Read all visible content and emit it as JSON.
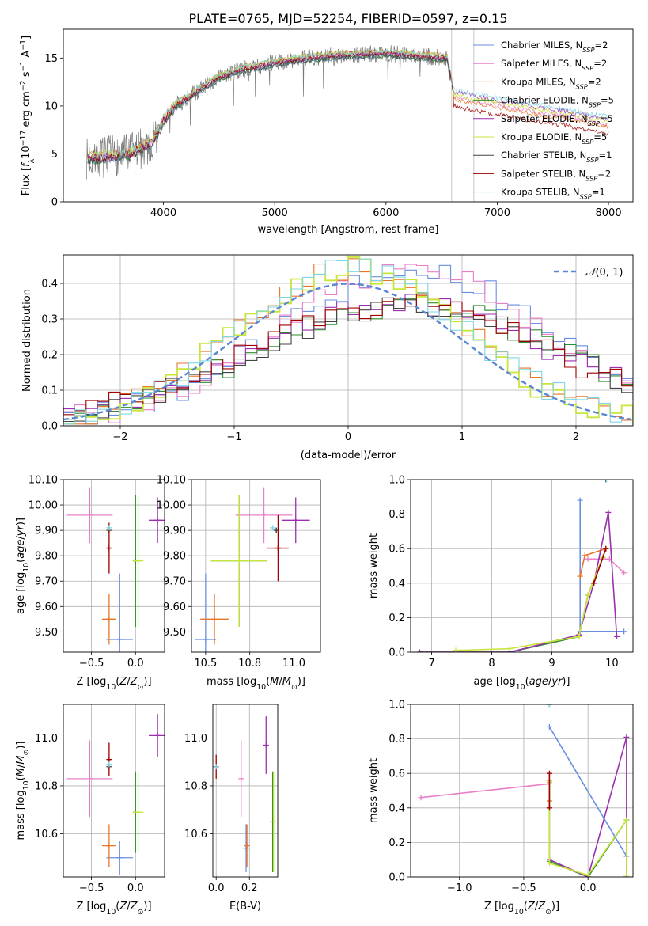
{
  "figure_title": "PLATE=0765, MJD=52254, FIBERID=0597, z=0.15",
  "colors": {
    "chabrier_miles": "#6a8fe0",
    "salpeter_miles": "#e880c8",
    "kroupa_miles": "#e8762a",
    "chabrier_elodie": "#2e8a2e",
    "salpeter_elodie": "#9b2fae",
    "kroupa_elodie": "#c8e63a",
    "chabrier_stelib": "#444444",
    "salpeter_stelib": "#a00000",
    "kroupa_stelib": "#7fd6e6",
    "normal_curve": "#5b86d6"
  },
  "chart_data": [
    {
      "id": "spectrum",
      "type": "line",
      "title": "PLATE=0765, MJD=52254, FIBERID=0597, z=0.15",
      "xlabel": "wavelength [Angstrom, rest frame]",
      "ylabel": "Flux [f_λ 10^-17 erg cm^-2 s^-1 A^-1]",
      "xlim": [
        3100,
        8220
      ],
      "ylim": [
        0,
        18
      ],
      "xticks": [
        4000,
        5000,
        6000,
        7000,
        8000
      ],
      "yticks": [
        0,
        5,
        10,
        15
      ],
      "grid": false,
      "legend_position": "top-right",
      "legend": [
        "Chabrier MILES, N_SSP=2",
        "Salpeter MILES, N_SSP=2",
        "Kroupa MILES, N_SSP=2",
        "Chabrier ELODIE, N_SSP=5",
        "Salpeter ELODIE, N_SSP=5",
        "Kroupa ELODIE, N_SSP=5",
        "Chabrier STELIB, N_SSP=1",
        "Salpeter STELIB, N_SSP=2",
        "Kroupa STELIB, N_SSP=1"
      ],
      "continuum": {
        "x": [
          3300,
          3500,
          3700,
          3900,
          4000,
          4100,
          4300,
          4500,
          4700,
          5000,
          5300,
          5600,
          6000,
          6300,
          6550,
          6600
        ],
        "y": [
          4.5,
          4.7,
          5.0,
          6.2,
          8.5,
          10.0,
          11.5,
          13.0,
          13.8,
          14.5,
          15.0,
          15.3,
          15.5,
          15.2,
          15.0,
          12.0
        ]
      },
      "red_tail": {
        "x": [
          6600,
          6800,
          7000,
          7200,
          7400,
          7600,
          7800,
          8000
        ],
        "y": [
          11.5,
          11.0,
          10.6,
          10.2,
          9.8,
          9.5,
          9.0,
          8.6
        ]
      }
    },
    {
      "id": "residuals",
      "type": "line",
      "xlabel": "(data-model)/error",
      "ylabel": "Normed distribution",
      "xlim": [
        -2.5,
        2.5
      ],
      "ylim": [
        0,
        0.48
      ],
      "xticks": [
        -2,
        -1,
        0,
        1,
        2
      ],
      "yticks": [
        0.0,
        0.1,
        0.2,
        0.3,
        0.4
      ],
      "grid": true,
      "legend_position": "top-right",
      "legend": [
        "𝒩(0,1)"
      ],
      "normal_curve": {
        "mean": 0,
        "sigma": 1
      },
      "histogram_groups": [
        {
          "mean": 0.0,
          "sigma": 1.0,
          "peak": 0.44
        },
        {
          "mean": 0.55,
          "sigma": 1.2,
          "peak": 0.44
        },
        {
          "mean": 0.5,
          "sigma": 1.35,
          "peak": 0.34
        }
      ]
    },
    {
      "id": "age-vs-z",
      "type": "scatter",
      "xlabel": "Z [log10(Z/Z⊙)]",
      "ylabel": "age [log10(age/yr)]",
      "xlim": [
        -0.82,
        0.33
      ],
      "ylim": [
        9.42,
        10.1
      ],
      "xticks": [
        -0.5,
        0.0
      ],
      "yticks": [
        9.5,
        9.6,
        9.7,
        9.8,
        9.9,
        10.0,
        10.1
      ],
      "grid": true,
      "points": [
        {
          "series": "Chabrier MILES",
          "x": -0.18,
          "y": 9.47,
          "xerr": 0.15,
          "yerr": 0.26
        },
        {
          "series": "Salpeter MILES",
          "x": -0.52,
          "y": 9.96,
          "xerr": 0.26,
          "yerr": 0.11
        },
        {
          "series": "Kroupa MILES",
          "x": -0.3,
          "y": 9.55,
          "xerr": 0.08,
          "yerr": 0.1
        },
        {
          "series": "Chabrier ELODIE",
          "x": 0.0,
          "y": 9.78,
          "xerr": 0.02,
          "yerr": 0.26
        },
        {
          "series": "Salpeter ELODIE",
          "x": 0.25,
          "y": 9.94,
          "xerr": 0.1,
          "yerr": 0.09
        },
        {
          "series": "Kroupa ELODIE",
          "x": 0.03,
          "y": 9.78,
          "xerr": 0.06,
          "yerr": 0.26
        },
        {
          "series": "Chabrier STELIB",
          "x": -0.3,
          "y": 9.9,
          "xerr": 0.01,
          "yerr": 0.01
        },
        {
          "series": "Salpeter STELIB",
          "x": -0.3,
          "y": 9.83,
          "xerr": 0.02,
          "yerr": 0.1
        },
        {
          "series": "Kroupa STELIB",
          "x": -0.3,
          "y": 9.91,
          "xerr": 0.0,
          "yerr": 0.0
        }
      ]
    },
    {
      "id": "age-vs-mass",
      "type": "scatter",
      "xlabel": "mass [log10(M/M⊙)]",
      "ylabel": "",
      "xlim": [
        10.42,
        11.15
      ],
      "ylim": [
        9.42,
        10.1
      ],
      "xticks": [
        10.5,
        10.75,
        11.0
      ],
      "yticks": [
        9.5,
        9.6,
        9.7,
        9.8,
        9.9,
        10.0,
        10.1
      ],
      "grid": true,
      "points": [
        {
          "series": "Chabrier MILES",
          "x": 10.5,
          "y": 9.47,
          "xerr": 0.06,
          "yerr": 0.26
        },
        {
          "series": "Salpeter MILES",
          "x": 10.83,
          "y": 9.96,
          "xerr": 0.16,
          "yerr": 0.11
        },
        {
          "series": "Kroupa MILES",
          "x": 10.55,
          "y": 9.55,
          "xerr": 0.08,
          "yerr": 0.1
        },
        {
          "series": "Chabrier ELODIE",
          "x": 10.69,
          "y": 9.78,
          "xerr": 0.16,
          "yerr": 0.26
        },
        {
          "series": "Salpeter ELODIE",
          "x": 11.01,
          "y": 9.94,
          "xerr": 0.08,
          "yerr": 0.09
        },
        {
          "series": "Kroupa ELODIE",
          "x": 10.69,
          "y": 9.78,
          "xerr": 0.16,
          "yerr": 0.26
        },
        {
          "series": "Chabrier STELIB",
          "x": 10.9,
          "y": 9.9,
          "xerr": 0.01,
          "yerr": 0.01
        },
        {
          "series": "Salpeter STELIB",
          "x": 10.91,
          "y": 9.83,
          "xerr": 0.06,
          "yerr": 0.13
        },
        {
          "series": "Kroupa STELIB",
          "x": 10.88,
          "y": 9.91,
          "xerr": 0.0,
          "yerr": 0.0
        }
      ]
    },
    {
      "id": "weight-vs-age",
      "type": "line",
      "xlabel": "age [log10(age/yr)]",
      "ylabel": "mass weight",
      "xlim": [
        6.65,
        10.35
      ],
      "ylim": [
        0,
        1.0
      ],
      "xticks": [
        7,
        8,
        9,
        10
      ],
      "yticks": [
        0.0,
        0.2,
        0.4,
        0.6,
        0.8,
        1.0
      ],
      "grid": true,
      "series": [
        {
          "name": "Chabrier MILES",
          "x": [
            9.47,
            9.47,
            10.2
          ],
          "y": [
            0.88,
            0.12,
            0.12
          ]
        },
        {
          "name": "Salpeter MILES",
          "x": [
            9.6,
            9.96,
            10.2
          ],
          "y": [
            0.54,
            0.54,
            0.46
          ]
        },
        {
          "name": "Kroupa MILES",
          "x": [
            9.47,
            9.55,
            9.9
          ],
          "y": [
            0.44,
            0.56,
            0.6
          ]
        },
        {
          "name": "Chabrier ELODIE",
          "x": [
            6.8,
            8.3,
            9.45,
            9.6,
            9.85
          ],
          "y": [
            0.0,
            0.0,
            0.09,
            0.33,
            0.55
          ]
        },
        {
          "name": "Salpeter ELODIE",
          "x": [
            6.8,
            8.3,
            9.45,
            9.7,
            9.94,
            10.08
          ],
          "y": [
            0.0,
            0.0,
            0.1,
            0.4,
            0.81,
            0.09
          ]
        },
        {
          "name": "Kroupa ELODIE",
          "x": [
            7.4,
            8.3,
            9.45,
            9.6,
            9.85
          ],
          "y": [
            0.01,
            0.02,
            0.09,
            0.33,
            0.55
          ]
        },
        {
          "name": "Chabrier STELIB",
          "x": [
            9.9
          ],
          "y": [
            1.0
          ]
        },
        {
          "name": "Salpeter STELIB",
          "x": [
            9.7,
            9.9
          ],
          "y": [
            0.4,
            0.6
          ]
        },
        {
          "name": "Kroupa STELIB",
          "x": [
            9.91
          ],
          "y": [
            1.0
          ]
        }
      ]
    },
    {
      "id": "mass-vs-z",
      "type": "scatter",
      "xlabel": "Z [log10(Z/Z⊙)]",
      "ylabel": "mass [log10(M/M⊙)]",
      "xlim": [
        -0.82,
        0.33
      ],
      "ylim": [
        10.42,
        11.14
      ],
      "xticks": [
        -0.5,
        0.0
      ],
      "yticks": [
        10.6,
        10.8,
        11.0
      ],
      "grid": true,
      "points": [
        {
          "series": "Chabrier MILES",
          "x": -0.18,
          "y": 10.5,
          "xerr": 0.15,
          "yerr": 0.07
        },
        {
          "series": "Salpeter MILES",
          "x": -0.52,
          "y": 10.83,
          "xerr": 0.26,
          "yerr": 0.16
        },
        {
          "series": "Kroupa MILES",
          "x": -0.3,
          "y": 10.55,
          "xerr": 0.08,
          "yerr": 0.09
        },
        {
          "series": "Chabrier ELODIE",
          "x": 0.0,
          "y": 10.69,
          "xerr": 0.02,
          "yerr": 0.17
        },
        {
          "series": "Salpeter ELODIE",
          "x": 0.25,
          "y": 11.01,
          "xerr": 0.1,
          "yerr": 0.09
        },
        {
          "series": "Kroupa ELODIE",
          "x": 0.03,
          "y": 10.69,
          "xerr": 0.06,
          "yerr": 0.17
        },
        {
          "series": "Chabrier STELIB",
          "x": -0.3,
          "y": 10.88,
          "xerr": 0.01,
          "yerr": 0.01
        },
        {
          "series": "Salpeter STELIB",
          "x": -0.3,
          "y": 10.91,
          "xerr": 0.02,
          "yerr": 0.07
        },
        {
          "series": "Kroupa STELIB",
          "x": -0.3,
          "y": 10.89,
          "xerr": 0.0,
          "yerr": 0.0
        }
      ]
    },
    {
      "id": "mass-vs-ebv",
      "type": "scatter",
      "xlabel": "E(B-V)",
      "ylabel": "",
      "xlim": [
        -0.02,
        0.37
      ],
      "ylim": [
        10.42,
        11.14
      ],
      "xticks": [
        0.0,
        0.2
      ],
      "yticks": [
        10.6,
        10.8,
        11.0
      ],
      "grid": true,
      "points": [
        {
          "series": "Chabrier MILES",
          "x": 0.18,
          "y": 10.54,
          "xerr": 0.0,
          "yerr": 0.1
        },
        {
          "series": "Salpeter MILES",
          "x": 0.15,
          "y": 10.83,
          "xerr": 0.0,
          "yerr": 0.16
        },
        {
          "series": "Kroupa MILES",
          "x": 0.185,
          "y": 10.55,
          "xerr": 0.0,
          "yerr": 0.09
        },
        {
          "series": "Chabrier ELODIE",
          "x": 0.34,
          "y": 10.65,
          "xerr": 0.0,
          "yerr": 0.21
        },
        {
          "series": "Salpeter ELODIE",
          "x": 0.3,
          "y": 10.97,
          "xerr": 0.0,
          "yerr": 0.12
        },
        {
          "series": "Kroupa ELODIE",
          "x": 0.345,
          "y": 10.65,
          "xerr": 0.0,
          "yerr": 0.21
        },
        {
          "series": "Chabrier STELIB",
          "x": 0.0,
          "y": 10.88,
          "xerr": 0.0,
          "yerr": 0.01
        },
        {
          "series": "Salpeter STELIB",
          "x": 0.0,
          "y": 10.88,
          "xerr": 0.0,
          "yerr": 0.05
        },
        {
          "series": "Kroupa STELIB",
          "x": 0.0,
          "y": 10.88,
          "xerr": 0.0,
          "yerr": 0.0
        }
      ]
    },
    {
      "id": "weight-vs-z",
      "type": "line",
      "xlabel": "Z [log10(Z/Z⊙)]",
      "ylabel": "mass weight",
      "xlim": [
        -1.38,
        0.35
      ],
      "ylim": [
        0,
        1.0
      ],
      "xticks": [
        -1.0,
        -0.5,
        0.0
      ],
      "yticks": [
        0.0,
        0.2,
        0.4,
        0.6,
        0.8,
        1.0
      ],
      "grid": true,
      "series": [
        {
          "name": "Chabrier MILES",
          "x": [
            -0.3,
            0.3
          ],
          "y": [
            0.87,
            0.12
          ]
        },
        {
          "name": "Salpeter MILES",
          "x": [
            -1.3,
            -0.3
          ],
          "y": [
            0.46,
            0.54
          ]
        },
        {
          "name": "Kroupa MILES",
          "x": [
            -0.3,
            -0.3
          ],
          "y": [
            0.44,
            0.56
          ]
        },
        {
          "name": "Chabrier ELODIE",
          "x": [
            -0.3,
            -0.3,
            0.0,
            0.3,
            0.3
          ],
          "y": [
            0.55,
            0.09,
            0.0,
            0.33,
            0.01
          ]
        },
        {
          "name": "Salpeter ELODIE",
          "x": [
            -0.3,
            0.0,
            0.3,
            0.3
          ],
          "y": [
            0.1,
            0.0,
            0.81,
            0.0
          ]
        },
        {
          "name": "Kroupa ELODIE",
          "x": [
            -0.3,
            -0.3,
            0.0,
            0.3,
            0.3
          ],
          "y": [
            0.55,
            0.08,
            0.01,
            0.33,
            0.01
          ]
        },
        {
          "name": "Chabrier STELIB",
          "x": [
            -0.3
          ],
          "y": [
            1.0
          ]
        },
        {
          "name": "Salpeter STELIB",
          "x": [
            -0.3,
            -0.3
          ],
          "y": [
            0.4,
            0.6
          ]
        },
        {
          "name": "Kroupa STELIB",
          "x": [
            -0.3
          ],
          "y": [
            1.0
          ]
        }
      ]
    }
  ]
}
